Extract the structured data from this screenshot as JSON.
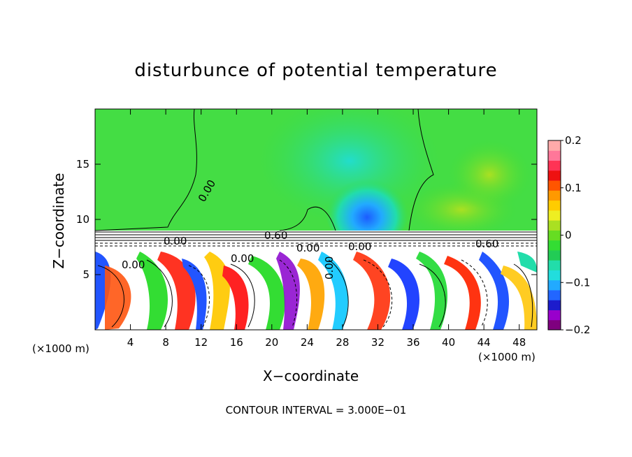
{
  "chart_data": {
    "type": "heatmap",
    "title": "disturbunce of potential temperature",
    "xlabel": "X−coordinate",
    "ylabel": "Z−coordinate",
    "x_unit_label_left": "(×1000 m)",
    "x_unit_label_right": "(×1000 m)",
    "xlim": [
      0,
      50
    ],
    "ylim": [
      0,
      20
    ],
    "x_ticks": [
      "4",
      "8",
      "12",
      "16",
      "20",
      "24",
      "28",
      "32",
      "36",
      "40",
      "44",
      "48"
    ],
    "y_ticks": [
      "5",
      "10",
      "15"
    ],
    "colorbar": {
      "range": [
        -0.2,
        0.2
      ],
      "tick_labels": [
        "0.2",
        "0.1",
        "0",
        "−0.1",
        "−0.2"
      ],
      "colors": [
        "#7f007f",
        "#9900cc",
        "#1c1ccc",
        "#2266ff",
        "#22aaff",
        "#22dddd",
        "#22ddaa",
        "#22cc55",
        "#33dd33",
        "#66dd22",
        "#aae022",
        "#eeee22",
        "#ffcc00",
        "#ff9900",
        "#ff5500",
        "#ee1111",
        "#ff3355",
        "#ff7799",
        "#ffaaaa"
      ]
    },
    "contour_labels": [
      "0.00",
      "0.00",
      "0.00",
      "0.60",
      "0.00",
      "0.00",
      "0.60",
      "0.00",
      "0.00"
    ],
    "contour_interval_text": "CONTOUR INTERVAL = 3.000E−01",
    "fields": {
      "upper_background": "green",
      "inversion_layer_top_z": 9,
      "inversion_layer_bottom_z": 7.5,
      "cold_anomaly_center_x": 32,
      "lower_layer": "turbulent mixed anomalies"
    }
  }
}
